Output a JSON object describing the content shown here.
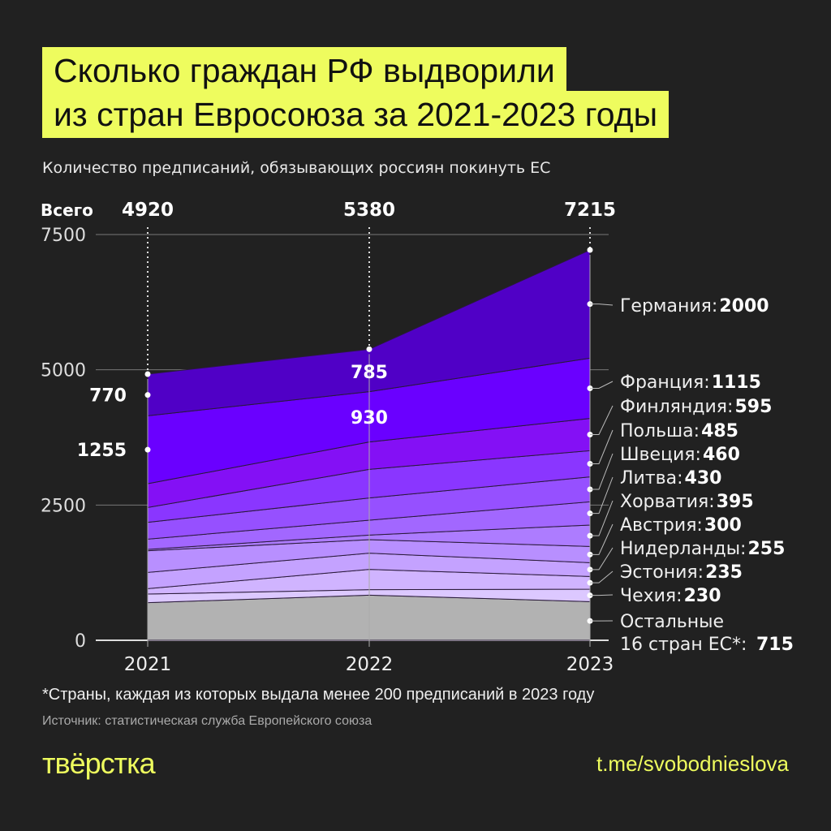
{
  "title_line1": "Сколько граждан РФ выдворили",
  "title_line2": "из стран Евросоюза за 2021-2023 годы",
  "subtitle": "Количество предписаний, обязывающих россиян покинуть ЕС",
  "footnote": "*Страны, каждая из которых выдала менее 200 предписаний в 2023 году",
  "source": "Источник: статистическая служба Европейского союза",
  "logo": "твёрстка",
  "link": "t.me/svobodnieslova",
  "accent_color": "#eefc5e",
  "chart_data": {
    "type": "area",
    "stacked": true,
    "title": "Сколько граждан РФ выдворили из стран Евросоюза за 2021-2023 годы",
    "subtitle": "Количество предписаний, обязывающих россиян покинуть ЕС",
    "x": [
      "2021",
      "2022",
      "2023"
    ],
    "ylim": [
      0,
      7500
    ],
    "yticks": [
      "0",
      "2500",
      "5000",
      "7500"
    ],
    "grid": true,
    "totals_label": "Всего",
    "totals": [
      "4920",
      "5380",
      "7215"
    ],
    "series": [
      {
        "name": "Остальные 16 стран ЕС*",
        "label_line1": "Остальные",
        "label_line2": "16 стран ЕС*: ",
        "label_value": "715",
        "values": [
          695,
          835,
          715
        ],
        "color": "#b2b2b2"
      },
      {
        "name": "Чехия",
        "label": "Чехия: ",
        "label_value": "230",
        "values": [
          160,
          100,
          230
        ],
        "color": "#dcc8ff"
      },
      {
        "name": "Эстония",
        "label": "Эстония: ",
        "label_value": "235",
        "values": [
          100,
          375,
          235
        ],
        "color": "#d0b4ff"
      },
      {
        "name": "Нидерланды",
        "label": "Нидерланды: ",
        "label_value": "255",
        "values": [
          300,
          300,
          255
        ],
        "color": "#c4a2ff"
      },
      {
        "name": "Австрия",
        "label": "Австрия: ",
        "label_value": "300",
        "values": [
          400,
          250,
          300
        ],
        "color": "#b88fff"
      },
      {
        "name": "Хорватия",
        "label": "Хорватия: ",
        "label_value": "395",
        "values": [
          25,
          85,
          395
        ],
        "color": "#ad7cff"
      },
      {
        "name": "Литва",
        "label": "Литва: ",
        "label_value": "430",
        "values": [
          190,
          275,
          430
        ],
        "color": "#a267ff"
      },
      {
        "name": "Швеция",
        "label": "Швеция: ",
        "label_value": "460",
        "values": [
          310,
          410,
          460
        ],
        "color": "#9650ff"
      },
      {
        "name": "Польша",
        "label": "Польша: ",
        "label_value": "485",
        "values": [
          275,
          530,
          485
        ],
        "color": "#8a36ff"
      },
      {
        "name": "Финляндия",
        "label": "Финляндия: ",
        "label_value": "595",
        "values": [
          440,
          505,
          595
        ],
        "color": "#8410f5"
      },
      {
        "name": "Франция",
        "label": "Франция: ",
        "label_value": "1115",
        "values": [
          1255,
          930,
          1115
        ],
        "color": "#6a00ff"
      },
      {
        "name": "Германия",
        "label": "Германия: ",
        "label_value": "2000",
        "values": [
          770,
          785,
          2000
        ],
        "color": "#5000c6"
      }
    ],
    "annotations": {
      "germany_2021": "770",
      "france_2021": "1255",
      "germany_2022": "785",
      "france_2022": "930"
    }
  }
}
